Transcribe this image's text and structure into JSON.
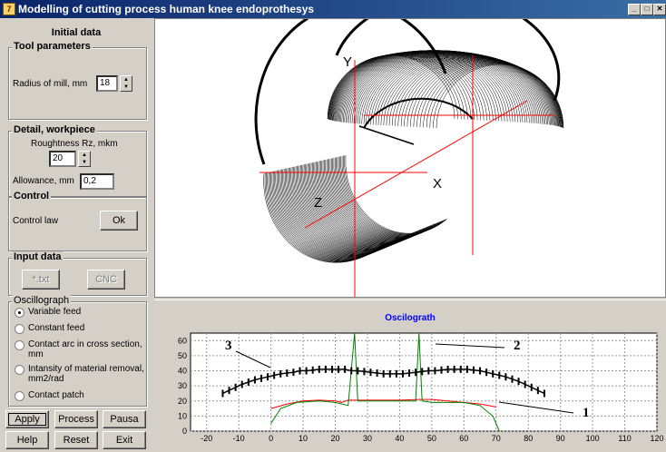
{
  "window": {
    "title": "Modelling of cutting process human knee endoprothesys",
    "icon": "app-icon",
    "controls": [
      "minimize-icon",
      "maximize-icon",
      "close-icon"
    ]
  },
  "left": {
    "title": "Initial data",
    "tool": {
      "title": "Tool parameters",
      "radius_label": "Radius of mill, mm",
      "radius_value": "18"
    },
    "detail": {
      "title": "Detail, workpiece",
      "roughness_label": "Roughtness Rz, mkm",
      "roughness_value": "20",
      "allowance_label": "Allowance, mm",
      "allowance_value": "0,2"
    },
    "control": {
      "title": "Control",
      "law_label": "Control law",
      "ok_label": "Ok"
    },
    "input": {
      "title": "Input data",
      "txt_label": "*.txt",
      "cnc_label": "CNC"
    },
    "osc": {
      "title": "Oscillograph",
      "options": [
        "Variable feed",
        "Constant feed",
        "Contact arc in cross section, mm",
        "Intansity of material removal, mm2/rad",
        "Contact patch"
      ],
      "selected": 0
    },
    "buttons": {
      "apply": "Apply",
      "process": "Process",
      "pausa": "Pausa",
      "help": "Help",
      "reset": "Reset",
      "exit": "Exit"
    }
  },
  "view3d": {
    "axis_y": "Y",
    "axis_x": "X",
    "axis_z": "Z",
    "line_color": "#000000",
    "axis_color": "#ff0000"
  },
  "chart_data": {
    "type": "line",
    "title": "Oscilograth",
    "xlim": [
      -25,
      120
    ],
    "ylim": [
      0,
      65
    ],
    "xticks": [
      -20,
      -10,
      0,
      10,
      20,
      30,
      40,
      50,
      60,
      70,
      80,
      90,
      100,
      110,
      120
    ],
    "yticks": [
      0,
      10,
      20,
      30,
      40,
      50,
      60
    ],
    "grid": true,
    "series": [
      {
        "name": "1",
        "color": "#ff0000",
        "points": [
          [
            0,
            15
          ],
          [
            5,
            18
          ],
          [
            10,
            20
          ],
          [
            15,
            20.5
          ],
          [
            20,
            20
          ],
          [
            22,
            19
          ],
          [
            24,
            20.5
          ],
          [
            30,
            20.5
          ],
          [
            40,
            20.5
          ],
          [
            46,
            21
          ],
          [
            50,
            21
          ],
          [
            55,
            20
          ],
          [
            60,
            19
          ],
          [
            65,
            18
          ],
          [
            70,
            16
          ]
        ]
      },
      {
        "name": "2",
        "color": "#008000",
        "points": [
          [
            0,
            5
          ],
          [
            3,
            15
          ],
          [
            8,
            19
          ],
          [
            15,
            20
          ],
          [
            20,
            19
          ],
          [
            24,
            17
          ],
          [
            26,
            65
          ],
          [
            27,
            20
          ],
          [
            30,
            20
          ],
          [
            45,
            20
          ],
          [
            46,
            65
          ],
          [
            47,
            20
          ],
          [
            50,
            19
          ],
          [
            60,
            19
          ],
          [
            65,
            17
          ],
          [
            69,
            10
          ],
          [
            71,
            0
          ]
        ]
      },
      {
        "name": "3",
        "color": "#000000",
        "points": [
          [
            -15,
            25
          ],
          [
            -13,
            27
          ],
          [
            -11,
            29
          ],
          [
            -9,
            31
          ],
          [
            -7,
            32.5
          ],
          [
            -5,
            34
          ],
          [
            -3,
            35
          ],
          [
            -1,
            36
          ],
          [
            1,
            37
          ],
          [
            3,
            38
          ],
          [
            5,
            38.5
          ],
          [
            7,
            39
          ],
          [
            9,
            40
          ],
          [
            11,
            40
          ],
          [
            13,
            40.5
          ],
          [
            15,
            41
          ],
          [
            17,
            41
          ],
          [
            19,
            41
          ],
          [
            21,
            41
          ],
          [
            23,
            41
          ],
          [
            25,
            40
          ],
          [
            27,
            40
          ],
          [
            29,
            39.5
          ],
          [
            31,
            39
          ],
          [
            33,
            38.5
          ],
          [
            35,
            38
          ],
          [
            37,
            38
          ],
          [
            39,
            38
          ],
          [
            41,
            38
          ],
          [
            43,
            38.5
          ],
          [
            45,
            39
          ],
          [
            47,
            39.5
          ],
          [
            49,
            40
          ],
          [
            51,
            40
          ],
          [
            53,
            40.5
          ],
          [
            55,
            41
          ],
          [
            57,
            41
          ],
          [
            59,
            41
          ],
          [
            61,
            41
          ],
          [
            63,
            40.5
          ],
          [
            65,
            40
          ],
          [
            67,
            39
          ],
          [
            69,
            38
          ],
          [
            71,
            37
          ],
          [
            73,
            36
          ],
          [
            75,
            34.5
          ],
          [
            77,
            33
          ],
          [
            79,
            31
          ],
          [
            81,
            29
          ],
          [
            83,
            27
          ],
          [
            85,
            25
          ]
        ]
      }
    ],
    "annotations": [
      "1",
      "2",
      "3"
    ]
  }
}
